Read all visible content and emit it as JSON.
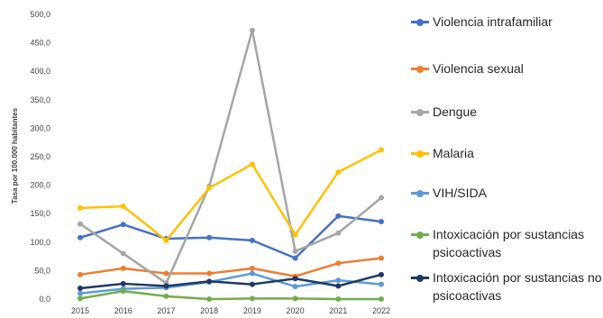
{
  "chart_data": {
    "type": "line",
    "title": "",
    "ylabel": "Tasa por 100.000 habitantes",
    "xlabel": "",
    "ylim": [
      0,
      500
    ],
    "y_ticks": [
      "0,0",
      "50,0",
      "100,0",
      "150,0",
      "200,0",
      "250,0",
      "300,0",
      "350,0",
      "400,0",
      "450,0",
      "500,0"
    ],
    "categories": [
      "2015",
      "2016",
      "2017",
      "2018",
      "2019",
      "2020",
      "2021",
      "2022"
    ],
    "grid": false,
    "legend_position": "right",
    "series": [
      {
        "name": "Violencia intrafamiliar",
        "color": "#4472C4",
        "values": [
          108,
          131,
          106,
          108,
          103,
          72,
          146,
          136
        ]
      },
      {
        "name": "Violencia sexual",
        "color": "#ED7D31",
        "values": [
          43,
          54,
          45,
          45,
          54,
          40,
          63,
          72
        ]
      },
      {
        "name": "Dengue",
        "color": "#A5A5A5",
        "values": [
          132,
          80,
          28,
          198,
          472,
          84,
          116,
          178
        ]
      },
      {
        "name": "Malaria",
        "color": "#FFC000",
        "values": [
          160,
          163,
          103,
          195,
          237,
          113,
          223,
          262
        ]
      },
      {
        "name": "VIH/SIDA",
        "color": "#5B9BD5",
        "values": [
          10,
          18,
          20,
          30,
          45,
          22,
          33,
          26
        ]
      },
      {
        "name": "Intoxicación por sustancias psicoactivas",
        "color": "#70AD47",
        "values": [
          1,
          14,
          5,
          0,
          1,
          1,
          0,
          0
        ]
      },
      {
        "name": "Intoxicación por sustancias no psicoactivas",
        "color": "#203864",
        "values": [
          19,
          27,
          23,
          31,
          26,
          36,
          23,
          43
        ]
      }
    ]
  }
}
